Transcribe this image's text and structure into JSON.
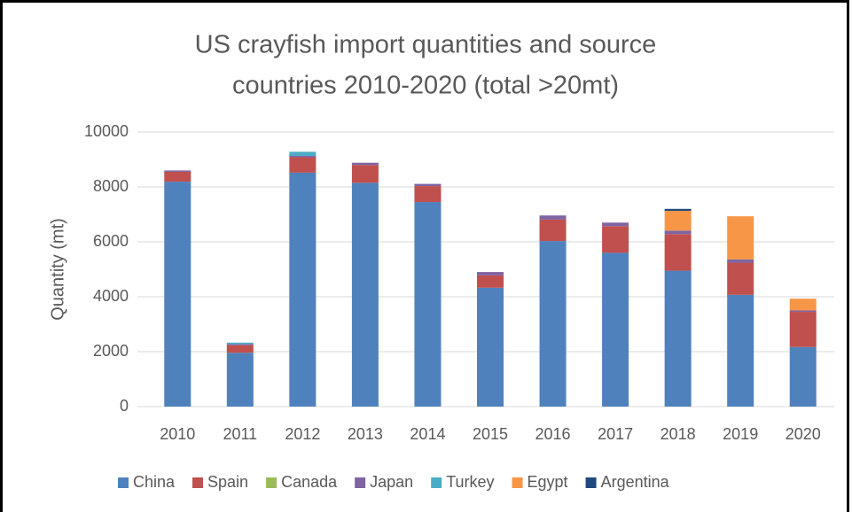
{
  "chart_data": {
    "type": "bar",
    "stacked": true,
    "title": [
      "US crayfish import quantities and source",
      "countries 2010-2020 (total >20mt)"
    ],
    "y_label": "Quantity (mt)",
    "categories": [
      "2010",
      "2011",
      "2012",
      "2013",
      "2014",
      "2015",
      "2016",
      "2017",
      "2018",
      "2019",
      "2020"
    ],
    "series": [
      {
        "name": "China",
        "color": "#4f81bd",
        "values": [
          8190,
          1960,
          8520,
          8150,
          7450,
          4330,
          6030,
          5600,
          4950,
          4070,
          2170
        ]
      },
      {
        "name": "Spain",
        "color": "#c0504d",
        "values": [
          360,
          270,
          560,
          650,
          580,
          450,
          780,
          970,
          1330,
          1170,
          1280
        ]
      },
      {
        "name": "Canada",
        "color": "#9bbb59",
        "values": [
          0,
          0,
          0,
          0,
          0,
          0,
          0,
          0,
          0,
          0,
          0
        ]
      },
      {
        "name": "Japan",
        "color": "#8064a2",
        "values": [
          50,
          50,
          50,
          80,
          80,
          120,
          150,
          130,
          130,
          120,
          50
        ]
      },
      {
        "name": "Turkey",
        "color": "#4bacc6",
        "values": [
          0,
          50,
          150,
          0,
          0,
          0,
          0,
          0,
          0,
          0,
          0
        ]
      },
      {
        "name": "Egypt",
        "color": "#f79646",
        "values": [
          0,
          0,
          0,
          0,
          0,
          0,
          0,
          0,
          720,
          1570,
          430
        ]
      },
      {
        "name": "Argentina",
        "color": "#1f497d",
        "values": [
          0,
          0,
          0,
          0,
          0,
          0,
          0,
          0,
          70,
          0,
          0
        ]
      }
    ],
    "ylim": [
      0,
      10000
    ],
    "yticks": [
      0,
      2000,
      4000,
      6000,
      8000,
      10000
    ],
    "grid": true,
    "legend": "bottom"
  }
}
